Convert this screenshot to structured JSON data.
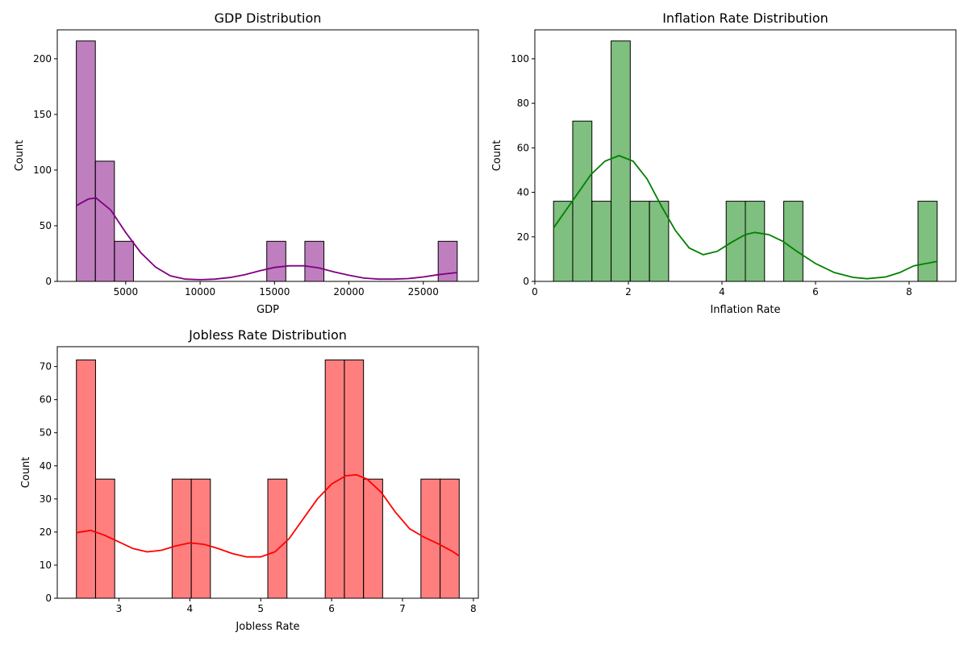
{
  "chart_data": [
    {
      "type": "histogram",
      "title": "GDP Distribution",
      "xlabel": "GDP",
      "ylabel": "Count",
      "color": "#800080",
      "kde": true,
      "xlim": [
        400,
        28700
      ],
      "ylim": [
        0,
        226
      ],
      "xticks": [
        5000,
        10000,
        15000,
        20000,
        25000
      ],
      "yticks": [
        0,
        50,
        100,
        150,
        200
      ],
      "bins": [
        {
          "x0": 1680,
          "x1": 2960,
          "count": 216
        },
        {
          "x0": 2960,
          "x1": 4240,
          "count": 108
        },
        {
          "x0": 4240,
          "x1": 5520,
          "count": 36
        },
        {
          "x0": 14480,
          "x1": 15760,
          "count": 36
        },
        {
          "x0": 17040,
          "x1": 18320,
          "count": 36
        },
        {
          "x0": 26000,
          "x1": 27280,
          "count": 36
        }
      ],
      "kde_curve": [
        [
          1680,
          68
        ],
        [
          2500,
          74
        ],
        [
          3000,
          75
        ],
        [
          4000,
          64
        ],
        [
          5000,
          44
        ],
        [
          6000,
          26
        ],
        [
          7000,
          13
        ],
        [
          8000,
          5
        ],
        [
          9000,
          2
        ],
        [
          10000,
          1.5
        ],
        [
          11000,
          2
        ],
        [
          12000,
          3.5
        ],
        [
          13000,
          6
        ],
        [
          14000,
          9.5
        ],
        [
          15000,
          12.5
        ],
        [
          16000,
          14
        ],
        [
          17000,
          14
        ],
        [
          18000,
          12
        ],
        [
          19000,
          8.5
        ],
        [
          20000,
          5.5
        ],
        [
          21000,
          3
        ],
        [
          22000,
          2
        ],
        [
          23000,
          2
        ],
        [
          24000,
          2.5
        ],
        [
          25000,
          4
        ],
        [
          26000,
          6
        ],
        [
          27280,
          8
        ]
      ]
    },
    {
      "type": "histogram",
      "title": "Inflation Rate Distribution",
      "xlabel": "Inflation Rate",
      "ylabel": "Count",
      "color": "#008000",
      "kde": true,
      "xlim": [
        0,
        9
      ],
      "ylim": [
        0,
        113
      ],
      "xticks": [
        0,
        2,
        4,
        6,
        8
      ],
      "yticks": [
        0,
        20,
        40,
        60,
        80,
        100
      ],
      "bins": [
        {
          "x0": 0.4,
          "x1": 0.81,
          "count": 36
        },
        {
          "x0": 0.81,
          "x1": 1.22,
          "count": 72
        },
        {
          "x0": 1.22,
          "x1": 1.63,
          "count": 36
        },
        {
          "x0": 1.63,
          "x1": 2.04,
          "count": 108
        },
        {
          "x0": 2.04,
          "x1": 2.45,
          "count": 36
        },
        {
          "x0": 2.45,
          "x1": 2.86,
          "count": 36
        },
        {
          "x0": 4.09,
          "x1": 4.5,
          "count": 36
        },
        {
          "x0": 4.5,
          "x1": 4.91,
          "count": 36
        },
        {
          "x0": 5.32,
          "x1": 5.73,
          "count": 36
        },
        {
          "x0": 8.19,
          "x1": 8.6,
          "count": 36
        }
      ],
      "kde_curve": [
        [
          0.4,
          24
        ],
        [
          0.8,
          36
        ],
        [
          1.2,
          48
        ],
        [
          1.5,
          54
        ],
        [
          1.8,
          56.5
        ],
        [
          2.1,
          54
        ],
        [
          2.4,
          46
        ],
        [
          2.7,
          34
        ],
        [
          3.0,
          23
        ],
        [
          3.3,
          15
        ],
        [
          3.6,
          12
        ],
        [
          3.9,
          13.5
        ],
        [
          4.2,
          17.5
        ],
        [
          4.5,
          21
        ],
        [
          4.7,
          22
        ],
        [
          5.0,
          21
        ],
        [
          5.3,
          18
        ],
        [
          5.6,
          13.5
        ],
        [
          6.0,
          8
        ],
        [
          6.4,
          4
        ],
        [
          6.8,
          1.8
        ],
        [
          7.1,
          1.2
        ],
        [
          7.5,
          2
        ],
        [
          7.8,
          4
        ],
        [
          8.1,
          7
        ],
        [
          8.6,
          9
        ]
      ]
    },
    {
      "type": "histogram",
      "title": "Jobless Rate Distribution",
      "xlabel": "Jobless Rate",
      "ylabel": "Count",
      "color": "#ff0000",
      "kde": true,
      "xlim": [
        2.13,
        8.07
      ],
      "ylim": [
        0,
        76
      ],
      "xticks": [
        3,
        4,
        5,
        6,
        7,
        8
      ],
      "yticks": [
        0,
        10,
        20,
        30,
        40,
        50,
        60,
        70
      ],
      "bins": [
        {
          "x0": 2.4,
          "x1": 2.67,
          "count": 72
        },
        {
          "x0": 2.67,
          "x1": 2.94,
          "count": 36
        },
        {
          "x0": 3.75,
          "x1": 4.02,
          "count": 36
        },
        {
          "x0": 4.02,
          "x1": 4.29,
          "count": 36
        },
        {
          "x0": 5.1,
          "x1": 5.37,
          "count": 36
        },
        {
          "x0": 5.91,
          "x1": 6.18,
          "count": 72
        },
        {
          "x0": 6.18,
          "x1": 6.45,
          "count": 72
        },
        {
          "x0": 6.45,
          "x1": 6.72,
          "count": 36
        },
        {
          "x0": 7.26,
          "x1": 7.53,
          "count": 36
        },
        {
          "x0": 7.53,
          "x1": 7.8,
          "count": 36
        }
      ],
      "kde_curve": [
        [
          2.4,
          19.8
        ],
        [
          2.6,
          20.5
        ],
        [
          2.8,
          19
        ],
        [
          3.0,
          17
        ],
        [
          3.2,
          15
        ],
        [
          3.4,
          14
        ],
        [
          3.6,
          14.5
        ],
        [
          3.8,
          15.8
        ],
        [
          4.0,
          16.7
        ],
        [
          4.2,
          16.3
        ],
        [
          4.4,
          15
        ],
        [
          4.6,
          13.5
        ],
        [
          4.8,
          12.5
        ],
        [
          5.0,
          12.5
        ],
        [
          5.2,
          14
        ],
        [
          5.4,
          18
        ],
        [
          5.6,
          24
        ],
        [
          5.8,
          30
        ],
        [
          6.0,
          34.5
        ],
        [
          6.2,
          37
        ],
        [
          6.35,
          37.3
        ],
        [
          6.5,
          36
        ],
        [
          6.7,
          32
        ],
        [
          6.9,
          26
        ],
        [
          7.1,
          21
        ],
        [
          7.3,
          18.5
        ],
        [
          7.5,
          16.5
        ],
        [
          7.7,
          14.2
        ],
        [
          7.8,
          12.8
        ]
      ]
    }
  ]
}
